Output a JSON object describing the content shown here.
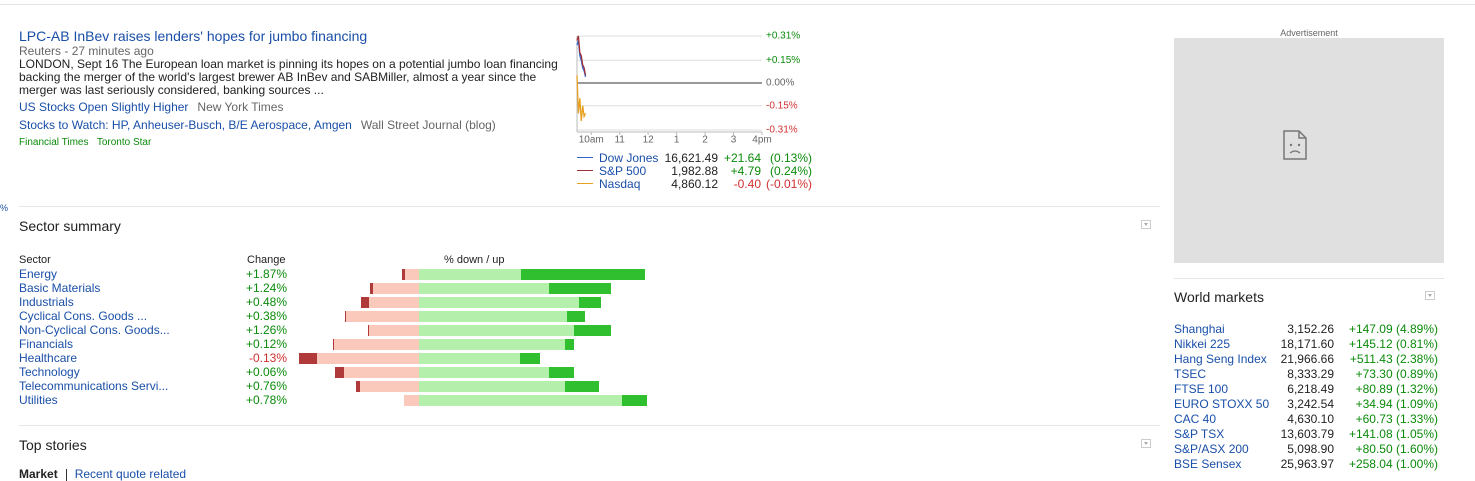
{
  "edge_fragment": "%",
  "news": {
    "headline": "LPC-AB InBev raises lenders' hopes for jumbo financing",
    "source": "Reuters",
    "age": "- 27 minutes ago",
    "snippet": "LONDON, Sept 16 The European loan market is pinning its hopes on a potential jumbo loan financing backing the merger of the world's largest brewer AB InBev and SABMiller, almost a year since the merger was last seriously considered, banking sources ...",
    "related": [
      {
        "title": "US Stocks Open Slightly Higher",
        "source": "New York Times"
      },
      {
        "title": "Stocks to Watch: HP, Anheuser-Busch, B/E Aerospace, Amgen",
        "source": "Wall Street Journal (blog)"
      }
    ],
    "more_sources": [
      "Financial Times",
      "Toronto Star"
    ]
  },
  "chart_data": {
    "type": "line",
    "xlim": [
      9.5,
      16
    ],
    "xticks": [
      {
        "value": 10,
        "label": "10am"
      },
      11,
      12,
      {
        "value": 13,
        "label": "1"
      },
      {
        "value": 14,
        "label": "2"
      },
      {
        "value": 15,
        "label": "3"
      },
      {
        "value": 16,
        "label": "4pm"
      }
    ],
    "ylim": [
      -0.31,
      0.31
    ],
    "yticks": [
      {
        "value": 0.31,
        "label": "+0.31%"
      },
      {
        "value": 0.15,
        "label": "+0.15%"
      },
      {
        "value": 0,
        "label": "0.00%"
      },
      {
        "value": -0.15,
        "label": "-0.15%"
      },
      {
        "value": -0.31,
        "label": "-0.31%"
      }
    ],
    "x": [
      9.5,
      9.55,
      9.6,
      9.65,
      9.7,
      9.75,
      9.8
    ],
    "series": [
      {
        "name": "Dow Jones",
        "color": "#3366cc",
        "values": [
          0.25,
          0.28,
          0.18,
          0.15,
          0.1,
          0.08,
          0.04
        ],
        "price": "16,621.49",
        "change": "+21.64",
        "pct": "(0.13%)"
      },
      {
        "name": "S&P 500",
        "color": "#a0303a",
        "values": [
          0.28,
          0.31,
          0.2,
          0.18,
          0.12,
          0.1,
          0.05
        ],
        "price": "1,982.88",
        "change": "+4.79",
        "pct": "(0.24%)"
      },
      {
        "name": "Nasdaq",
        "color": "#e8a020",
        "values": [
          0.05,
          -0.2,
          -0.1,
          -0.25,
          -0.15,
          -0.22,
          -0.2
        ],
        "price": "4,860.12",
        "change": "-0.40",
        "pct": "(-0.01%)"
      }
    ]
  },
  "sector_summary": {
    "title": "Sector summary",
    "headers": [
      "Sector",
      "Change",
      "% down / up"
    ],
    "rows": [
      {
        "name": "Energy",
        "change": "+1.87%",
        "bars": [
          1.5,
          7,
          51,
          62
        ]
      },
      {
        "name": "Basic Materials",
        "change": "+1.24%",
        "bars": [
          1.5,
          23,
          65,
          31
        ]
      },
      {
        "name": "Industrials",
        "change": "+0.48%",
        "bars": [
          4,
          25,
          80,
          11
        ]
      },
      {
        "name": "Cyclical Cons. Goods ...",
        "change": "+0.38%",
        "bars": [
          0.5,
          36.5,
          74,
          9
        ]
      },
      {
        "name": "Non-Cyclical Cons. Goods...",
        "change": "+1.26%",
        "bars": [
          0.5,
          25,
          77.5,
          18.5
        ]
      },
      {
        "name": "Financials",
        "change": "+0.12%",
        "bars": [
          0.5,
          42.5,
          73,
          4.5
        ]
      },
      {
        "name": "Healthcare",
        "change": "-0.13%",
        "bars": [
          9,
          51,
          50.5,
          10
        ]
      },
      {
        "name": "Technology",
        "change": "+0.06%",
        "bars": [
          4.5,
          37.5,
          65,
          12.5
        ]
      },
      {
        "name": "Telecommunications Servi...",
        "change": "+0.76%",
        "bars": [
          2,
          29.5,
          73,
          17
        ]
      },
      {
        "name": "Utilities",
        "change": "+0.78%",
        "bars": [
          0,
          7.5,
          101.5,
          12.5
        ]
      }
    ]
  },
  "top_stories": {
    "title": "Top stories",
    "tabs": [
      "Market",
      "Recent quote related"
    ]
  },
  "advertisement": {
    "label": "Advertisement"
  },
  "world_markets": {
    "title": "World markets",
    "rows": [
      {
        "name": "Shanghai",
        "price": "3,152.26",
        "change": "+147.09 (4.89%)"
      },
      {
        "name": "Nikkei 225",
        "price": "18,171.60",
        "change": "+145.12 (0.81%)"
      },
      {
        "name": "Hang Seng Index",
        "price": "21,966.66",
        "change": "+511.43 (2.38%)"
      },
      {
        "name": "TSEC",
        "price": "8,333.29",
        "change": "+73.30 (0.89%)"
      },
      {
        "name": "FTSE 100",
        "price": "6,218.49",
        "change": "+80.89 (1.32%)"
      },
      {
        "name": "EURO STOXX 50",
        "price": "3,242.54",
        "change": "+34.94 (1.09%)"
      },
      {
        "name": "CAC 40",
        "price": "4,630.10",
        "change": "+60.73 (1.33%)"
      },
      {
        "name": "S&P TSX",
        "price": "13,603.79",
        "change": "+141.08 (1.05%)"
      },
      {
        "name": "S&P/ASX 200",
        "price": "5,098.90",
        "change": "+80.50 (1.60%)"
      },
      {
        "name": "BSE Sensex",
        "price": "25,963.97",
        "change": "+258.04 (1.00%)"
      }
    ]
  }
}
